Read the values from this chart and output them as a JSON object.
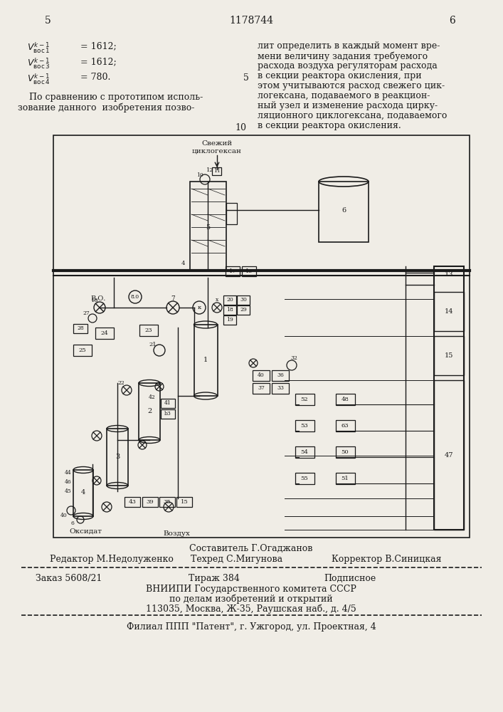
{
  "page_num_left": "5",
  "page_num_center": "1178744",
  "page_num_right": "6",
  "bg_color": "#f0ede6",
  "text_color": "#1a1a1a",
  "footer_sestavitel": "Составитель Г.Огаджанов",
  "footer_redaktor": "Редактор М.Недолуженко",
  "footer_tekhred": "Техред С.Мигунова",
  "footer_korrektor": "Корректор В.Синицкая",
  "footer_zakaz": "Заказ 5608/21",
  "footer_tirazh": "Тираж 384",
  "footer_podpisnoe": "Подписное",
  "footer_vniishi": "ВНИИПИ Государственного комитета СССР",
  "footer_po_delam": "по делам изобретений и открытий",
  "footer_address": "113035, Москва, Ж-35, Раушская наб., д. 4/5",
  "footer_filial": "Филиал ППП \"Патент\", г. Ужгород, ул. Проектная, 4"
}
